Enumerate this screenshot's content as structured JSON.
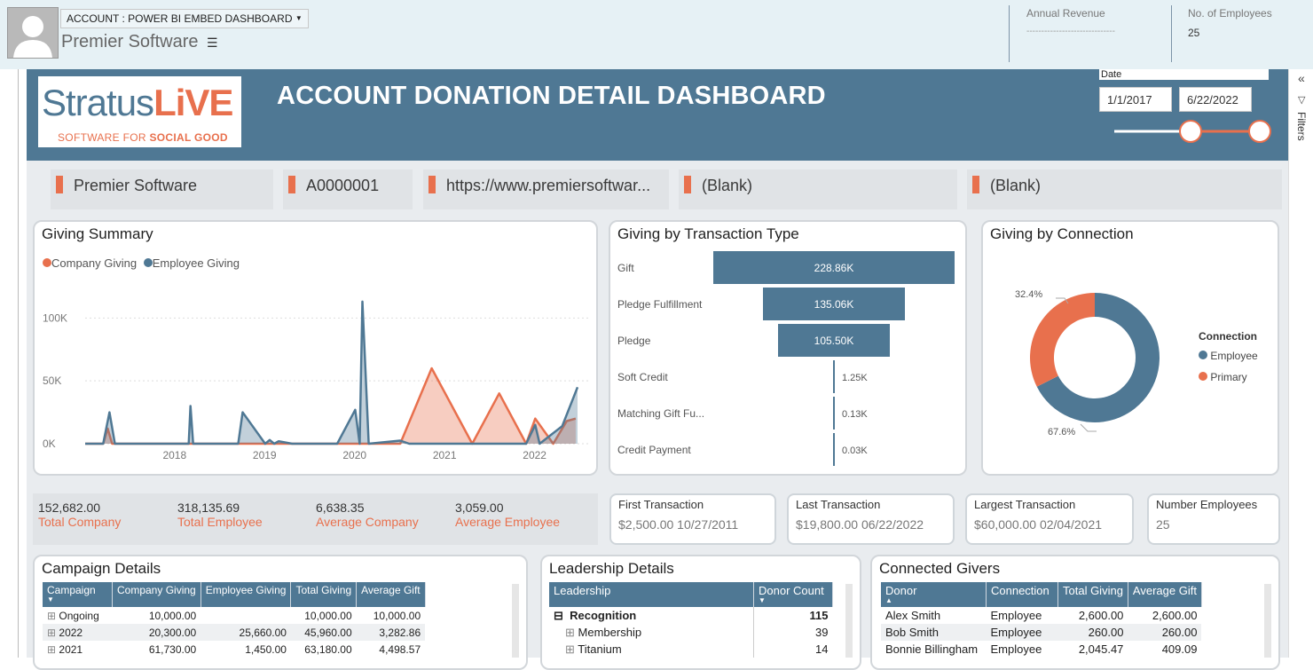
{
  "header": {
    "account_selector": "ACCOUNT : POWER BI EMBED DASHBOARD",
    "account_name": "Premier Software",
    "menu_icon": "list-menu-icon",
    "annual_revenue_label": "Annual Revenue",
    "annual_revenue_value": "------------------------------",
    "employees_label": "No. of Employees",
    "employees_value": "25"
  },
  "dashboard": {
    "logo_word_a": "Stratus",
    "logo_word_b": "LiVE",
    "logo_tagline_a": "SOFTWARE FOR ",
    "logo_tagline_b": "SOCIAL GOOD",
    "title": "ACCOUNT DONATION DETAIL DASHBOARD",
    "date_label": "Date",
    "date_start": "1/1/2017",
    "date_end": "6/22/2022",
    "slider_start": 0.5,
    "slider_end": 1.0,
    "filters_label": "Filters"
  },
  "kpis": [
    "Premier Software",
    "A0000001",
    "https://www.premiersoftwar...",
    "(Blank)",
    "(Blank)"
  ],
  "giving_summary": {
    "title": "Giving Summary",
    "legend": [
      "Company Giving",
      "Employee Giving"
    ]
  },
  "transaction_type": {
    "title": "Giving by Transaction Type"
  },
  "connection": {
    "title": "Giving by Connection",
    "legend_title": "Connection",
    "label_primary": "32.4%",
    "label_employee": "67.6%"
  },
  "chart_data": [
    {
      "type": "area",
      "title": "Giving Summary",
      "x_ticks": [
        "2018",
        "2019",
        "2020",
        "2021",
        "2022"
      ],
      "y_ticks": [
        "0K",
        "50K",
        "100K"
      ],
      "ylim": [
        0,
        120000
      ],
      "xlim": [
        2017.0,
        2022.5
      ],
      "legend_position": "top-left",
      "series": [
        {
          "name": "Company Giving",
          "color": "#e8704d",
          "x": [
            2017.0,
            2017.2,
            2017.25,
            2017.3,
            2018.0,
            2018.5,
            2018.8,
            2019.0,
            2019.2,
            2019.5,
            2020.0,
            2020.5,
            2020.85,
            2021.3,
            2021.6,
            2021.9,
            2022.0,
            2022.2,
            2022.35,
            2022.45
          ],
          "y": [
            0,
            0,
            12000,
            0,
            0,
            0,
            0,
            0,
            0,
            0,
            0,
            0,
            60000,
            0,
            40000,
            0,
            20000,
            0,
            18000,
            20000
          ]
        },
        {
          "name": "Employee Giving",
          "color": "#4f7894",
          "x": [
            2017.0,
            2017.2,
            2017.27,
            2017.33,
            2017.4,
            2018.0,
            2018.15,
            2018.17,
            2018.2,
            2018.7,
            2018.75,
            2018.85,
            2019.0,
            2019.05,
            2019.1,
            2019.15,
            2019.3,
            2019.8,
            2020.0,
            2020.05,
            2020.08,
            2020.15,
            2020.5,
            2020.6,
            2021.3,
            2021.5,
            2021.7,
            2021.9,
            2022.0,
            2022.05,
            2022.3,
            2022.47
          ],
          "y": [
            0,
            0,
            25000,
            0,
            0,
            0,
            0,
            30000,
            0,
            0,
            25000,
            15000,
            0,
            3000,
            0,
            2000,
            0,
            0,
            27000,
            0,
            113000,
            0,
            2500,
            0,
            0,
            0,
            0,
            0,
            15000,
            0,
            14000,
            45000
          ]
        }
      ]
    },
    {
      "type": "bar",
      "orientation": "horizontal-funnel",
      "title": "Giving by Transaction Type",
      "categories": [
        "Gift",
        "Pledge Fulfillment",
        "Pledge",
        "Soft Credit",
        "Matching Gift Fu...",
        "Credit Payment"
      ],
      "values": [
        228860,
        135060,
        105500,
        1250,
        130,
        30
      ],
      "labels": [
        "228.86K",
        "135.06K",
        "105.50K",
        "1.25K",
        "0.13K",
        "0.03K"
      ],
      "color": "#4f7894"
    },
    {
      "type": "pie",
      "subtype": "donut",
      "title": "Giving by Connection",
      "categories": [
        "Employee",
        "Primary"
      ],
      "values": [
        67.6,
        32.4
      ],
      "colors": [
        "#4f7894",
        "#e8704d"
      ],
      "legend_position": "right"
    }
  ],
  "totals": [
    {
      "value": "152,682.00",
      "label": "Total Company"
    },
    {
      "value": "318,135.69",
      "label": "Total Employee"
    },
    {
      "value": "6,638.35",
      "label": "Average Company"
    },
    {
      "value": "3,059.00",
      "label": "Average Employee"
    }
  ],
  "transaction_cards": [
    {
      "title": "First Transaction",
      "value": "$2,500.00 10/27/2011"
    },
    {
      "title": "Last Transaction",
      "value": "$19,800.00 06/22/2022"
    },
    {
      "title": "Largest Transaction",
      "value": "$60,000.00 02/04/2021"
    },
    {
      "title": "Number Employees",
      "value": "25"
    }
  ],
  "campaign": {
    "title": "Campaign Details",
    "columns": [
      "Campaign",
      "Company Giving",
      "Employee Giving",
      "Total Giving",
      "Average Gift"
    ],
    "rows": [
      [
        "Ongoing",
        "10,000.00",
        "",
        "10,000.00",
        "10,000.00"
      ],
      [
        "2022",
        "20,300.00",
        "25,660.00",
        "45,960.00",
        "3,282.86"
      ],
      [
        "2021",
        "61,730.00",
        "1,450.00",
        "63,180.00",
        "4,498.57"
      ]
    ]
  },
  "leadership": {
    "title": "Leadership Details",
    "columns": [
      "Leadership",
      "Donor Count"
    ],
    "rows": [
      [
        "Recognition",
        "115"
      ],
      [
        "Membership",
        "39"
      ],
      [
        "Titanium",
        "14"
      ]
    ]
  },
  "connected": {
    "title": "Connected Givers",
    "columns": [
      "Donor",
      "Connection",
      "Total Giving",
      "Average Gift"
    ],
    "rows": [
      [
        "Alex Smith",
        "Employee",
        "2,600.00",
        "2,600.00"
      ],
      [
        "Bob Smith",
        "Employee",
        "260.00",
        "260.00"
      ],
      [
        "Bonnie Billingham",
        "Employee",
        "2,045.47",
        "409.09"
      ]
    ]
  }
}
